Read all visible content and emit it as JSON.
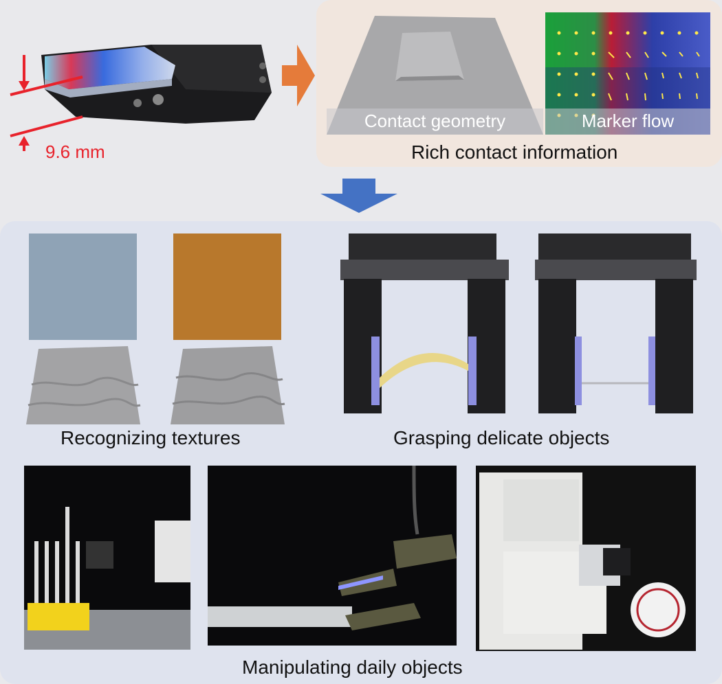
{
  "sensor": {
    "thickness_label": "9.6 mm"
  },
  "top_panel": {
    "caption": "Rich contact information",
    "geometry_label": "Contact geometry",
    "marker_label": "Marker flow"
  },
  "bottom_panel": {
    "textures_caption": "Recognizing textures",
    "grasping_caption": "Grasping delicate objects",
    "manipulating_caption": "Manipulating daily objects"
  },
  "colors": {
    "dimension_red": "#e8222b",
    "arrow_orange": "#e57b3a",
    "arrow_blue": "#4472c4"
  }
}
